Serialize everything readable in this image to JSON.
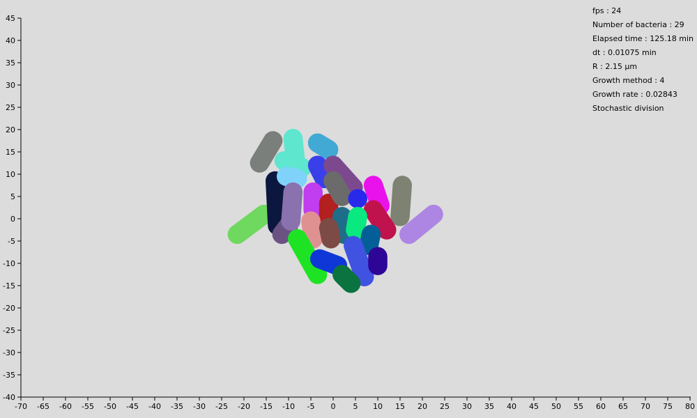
{
  "colors": {
    "background": "#dcdcdc",
    "axis": "#000000"
  },
  "stats": [
    "fps : 24",
    "Number of bacteria : 29",
    "Elapsed time : 125.18 min",
    "dt : 0.01075 min",
    "R : 2.15 µm",
    "Growth method : 4",
    "Growth rate : 0.02843",
    "Stochastic division"
  ],
  "chart_data": {
    "type": "scatter",
    "xlim": [
      -70,
      80
    ],
    "ylim": [
      -40,
      45
    ],
    "xticks": [
      -70,
      -65,
      -60,
      -55,
      -50,
      -45,
      -40,
      -35,
      -30,
      -25,
      -20,
      -15,
      -10,
      -5,
      0,
      5,
      10,
      15,
      20,
      25,
      30,
      35,
      40,
      45,
      50,
      55,
      60,
      65,
      70,
      75,
      80
    ],
    "yticks": [
      45,
      40,
      35,
      30,
      25,
      20,
      15,
      10,
      5,
      0,
      -5,
      -10,
      -15,
      -20,
      -25,
      -30,
      -35,
      -40
    ],
    "bacteria": [
      {
        "x1": -16.5,
        "y1": 12.5,
        "x2": -13.5,
        "y2": 17.5,
        "color": "#7b7f7b"
      },
      {
        "x1": -21.5,
        "y1": -3.5,
        "x2": -15.5,
        "y2": 1.0,
        "color": "#6fd85e"
      },
      {
        "x1": -13.0,
        "y1": 8.5,
        "x2": -12.5,
        "y2": -1.5,
        "color": "#0c173f"
      },
      {
        "x1": -11.5,
        "y1": -3.5,
        "x2": -10.0,
        "y2": -1.5,
        "color": "#6a5383"
      },
      {
        "x1": -9.0,
        "y1": 18.0,
        "x2": -8.5,
        "y2": 13.5,
        "color": "#5ee6cf"
      },
      {
        "x1": -11.0,
        "y1": 13.0,
        "x2": -7.0,
        "y2": 11.5,
        "color": "#5ee6cf"
      },
      {
        "x1": -10.5,
        "y1": 9.5,
        "x2": -8.0,
        "y2": 9.0,
        "color": "#7fd3fa"
      },
      {
        "x1": -3.5,
        "y1": 17.0,
        "x2": -1.0,
        "y2": 15.5,
        "color": "#41a9d3"
      },
      {
        "x1": -3.5,
        "y1": 12.0,
        "x2": -2.0,
        "y2": 9.0,
        "color": "#3940ea"
      },
      {
        "x1": 0.0,
        "y1": 12.0,
        "x2": 4.5,
        "y2": 7.0,
        "color": "#7d498e"
      },
      {
        "x1": -9.0,
        "y1": 6.0,
        "x2": -9.5,
        "y2": -0.5,
        "color": "#8a72ae"
      },
      {
        "x1": -4.5,
        "y1": 6.0,
        "x2": -4.5,
        "y2": 2.0,
        "color": "#c13df0"
      },
      {
        "x1": -1.0,
        "y1": 3.5,
        "x2": -1.0,
        "y2": 0.5,
        "color": "#b2201f"
      },
      {
        "x1": 0.0,
        "y1": 8.5,
        "x2": 2.0,
        "y2": 5.0,
        "color": "#6b6b6b"
      },
      {
        "x1": 5.5,
        "y1": 4.5,
        "x2": 5.5,
        "y2": 4.5,
        "color": "#2929ec"
      },
      {
        "x1": 9.0,
        "y1": 7.5,
        "x2": 10.5,
        "y2": 3.0,
        "color": "#ea12ec"
      },
      {
        "x1": 15.5,
        "y1": 7.5,
        "x2": 15.0,
        "y2": 0.5,
        "color": "#7e8273"
      },
      {
        "x1": 17.0,
        "y1": -3.5,
        "x2": 22.5,
        "y2": 1.0,
        "color": "#ad85e3"
      },
      {
        "x1": 9.0,
        "y1": 2.0,
        "x2": 12.0,
        "y2": -2.5,
        "color": "#c0124c"
      },
      {
        "x1": 2.0,
        "y1": 0.5,
        "x2": 2.5,
        "y2": -3.5,
        "color": "#1e6e8a"
      },
      {
        "x1": 5.5,
        "y1": 0.5,
        "x2": 5.0,
        "y2": -2.5,
        "color": "#0ae880"
      },
      {
        "x1": 8.5,
        "y1": -3.5,
        "x2": 8.0,
        "y2": -6.0,
        "color": "#045f98"
      },
      {
        "x1": -5.0,
        "y1": -0.5,
        "x2": -4.5,
        "y2": -4.5,
        "color": "#df9192"
      },
      {
        "x1": -1.0,
        "y1": -2.0,
        "x2": -0.5,
        "y2": -4.5,
        "color": "#7d4b45"
      },
      {
        "x1": -8.0,
        "y1": -4.5,
        "x2": -3.5,
        "y2": -12.5,
        "color": "#1ee325"
      },
      {
        "x1": -3.0,
        "y1": -9.0,
        "x2": 1.0,
        "y2": -10.5,
        "color": "#0f37d7"
      },
      {
        "x1": 4.5,
        "y1": -6.0,
        "x2": 7.0,
        "y2": -13.0,
        "color": "#4052e0"
      },
      {
        "x1": 10.0,
        "y1": -8.5,
        "x2": 10.0,
        "y2": -10.5,
        "color": "#2d0597"
      },
      {
        "x1": 2.0,
        "y1": -12.5,
        "x2": 4.0,
        "y2": -14.5,
        "color": "#0b7340"
      }
    ]
  }
}
